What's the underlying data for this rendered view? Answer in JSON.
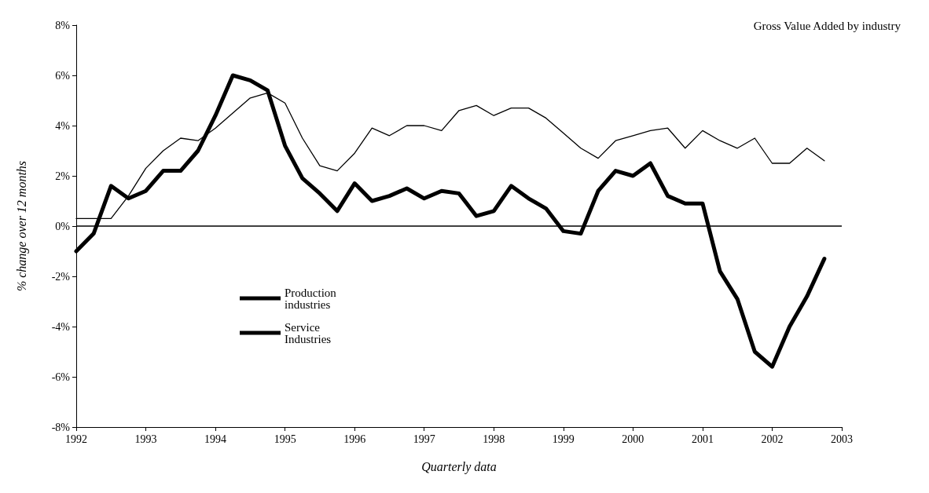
{
  "chart_data": {
    "type": "line",
    "title": "Gross Value Added by industry",
    "xlabel": "Quarterly data",
    "ylabel": "% change over 12 months",
    "x": [
      1992,
      1992.25,
      1992.5,
      1992.75,
      1993,
      1993.25,
      1993.5,
      1993.75,
      1994,
      1994.25,
      1994.5,
      1994.75,
      1995,
      1995.25,
      1995.5,
      1995.75,
      1996,
      1996.25,
      1996.5,
      1996.75,
      1997,
      1997.25,
      1997.5,
      1997.75,
      1998,
      1998.25,
      1998.5,
      1998.75,
      1999,
      1999.25,
      1999.5,
      1999.75,
      2000,
      2000.25,
      2000.5,
      2000.75,
      2001,
      2001.25,
      2001.5,
      2001.75,
      2002,
      2002.25,
      2002.5,
      2002.75
    ],
    "series": [
      {
        "name": "Production industries",
        "color": "#000000",
        "values": [
          -1.0,
          -0.3,
          1.6,
          1.1,
          1.4,
          2.2,
          2.2,
          3.0,
          4.4,
          6.0,
          5.8,
          5.4,
          3.2,
          1.9,
          1.3,
          0.6,
          1.7,
          1.0,
          1.2,
          1.5,
          1.1,
          1.4,
          1.3,
          0.4,
          0.6,
          1.6,
          1.1,
          0.7,
          -0.2,
          -0.3,
          1.4,
          2.2,
          2.0,
          2.5,
          1.2,
          0.9,
          0.9,
          -1.8,
          -2.9,
          -5.0,
          -5.6,
          -4.0,
          -2.8,
          -1.3
        ]
      },
      {
        "name": "Service Industries",
        "color": "#000000",
        "values": [
          0.3,
          0.3,
          0.3,
          1.2,
          2.3,
          3.0,
          3.5,
          3.4,
          3.9,
          4.5,
          5.1,
          5.3,
          4.9,
          3.5,
          2.4,
          2.2,
          2.9,
          3.9,
          3.6,
          4.0,
          4.0,
          3.8,
          4.6,
          4.8,
          4.4,
          4.7,
          4.7,
          4.3,
          3.7,
          3.1,
          2.7,
          3.4,
          3.6,
          3.8,
          3.9,
          3.1,
          3.8,
          3.4,
          3.1,
          3.5,
          2.5,
          2.5,
          3.1,
          2.6
        ]
      }
    ],
    "xlim": [
      1992,
      2003
    ],
    "xticks": [
      1992,
      1993,
      1994,
      1995,
      1996,
      1997,
      1998,
      1999,
      2000,
      2001,
      2002,
      2003
    ],
    "ylim": [
      -8,
      8
    ],
    "yticks": [
      {
        "value": -8,
        "label": "-8%"
      },
      {
        "value": -6,
        "label": "-6%"
      },
      {
        "value": -4,
        "label": "-4%"
      },
      {
        "value": -2,
        "label": "-2%"
      },
      {
        "value": 0,
        "label": "0%"
      },
      {
        "value": 2,
        "label": "2%"
      },
      {
        "value": 4,
        "label": "4%"
      },
      {
        "value": 6,
        "label": "6%"
      },
      {
        "value": 8,
        "label": "8%"
      }
    ],
    "ref_lines": [
      {
        "axis": "y",
        "value": 0,
        "color": "#000000"
      }
    ],
    "grid": false,
    "legend": "left",
    "marker": "none",
    "line_style": "solid"
  }
}
